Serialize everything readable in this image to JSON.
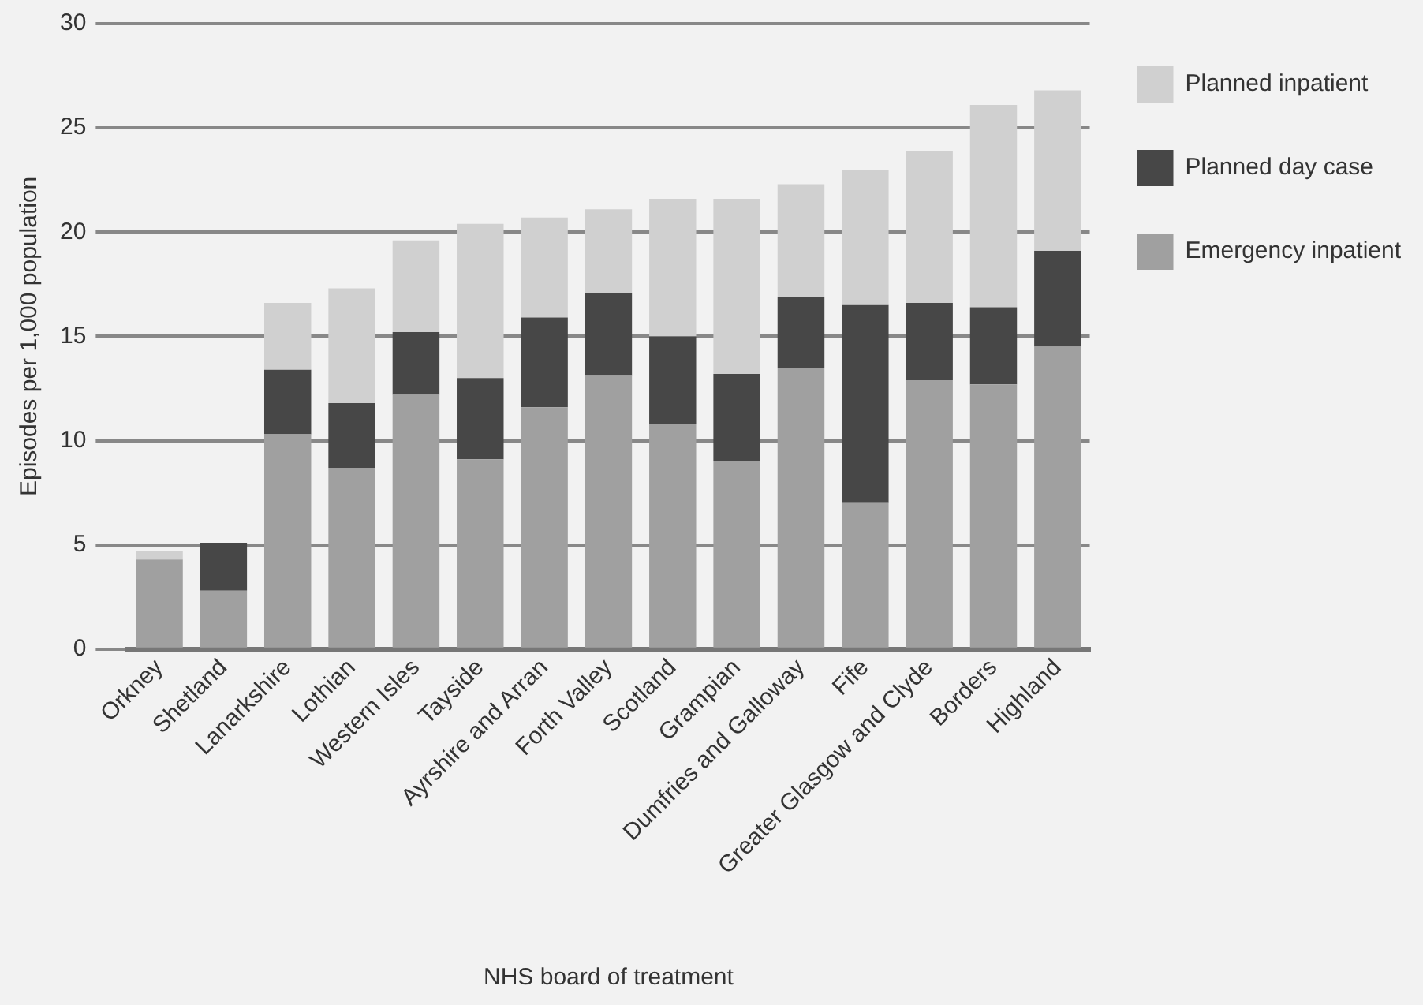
{
  "chart_data": {
    "type": "bar",
    "stacked": true,
    "xlabel": "NHS board of treatment",
    "ylabel": "Episodes per 1,000 population",
    "categories": [
      "Orkney",
      "Shetland",
      "Lanarkshire",
      "Lothian",
      "Western Isles",
      "Tayside",
      "Ayrshire and Arran",
      "Forth Valley",
      "Scotland",
      "Grampian",
      "Dumfries and Galloway",
      "Fife",
      "Greater Glasgow and Clyde",
      "Borders",
      "Highland"
    ],
    "series": [
      {
        "name": "Emergency inpatient",
        "color": "#a0a0a0",
        "values": [
          4.3,
          2.8,
          10.3,
          8.7,
          12.2,
          9.1,
          11.6,
          13.1,
          10.8,
          9.0,
          13.5,
          7.0,
          12.9,
          12.7,
          14.5
        ]
      },
      {
        "name": "Planned day case",
        "color": "#474747",
        "values": [
          0,
          2.3,
          3.1,
          3.1,
          3.0,
          3.9,
          4.3,
          4.0,
          4.2,
          4.2,
          3.4,
          9.5,
          3.7,
          3.7,
          4.6
        ]
      },
      {
        "name": "Planned inpatient",
        "color": "#d0d0d0",
        "values": [
          0.4,
          0,
          3.2,
          5.5,
          4.4,
          7.4,
          4.8,
          4.0,
          6.6,
          8.4,
          5.4,
          6.5,
          7.3,
          9.7,
          7.7
        ]
      }
    ],
    "ylim": [
      0,
      30
    ],
    "yticks": [
      0,
      5,
      10,
      15,
      20,
      25,
      30
    ],
    "grid": "y",
    "legend": "top right"
  }
}
